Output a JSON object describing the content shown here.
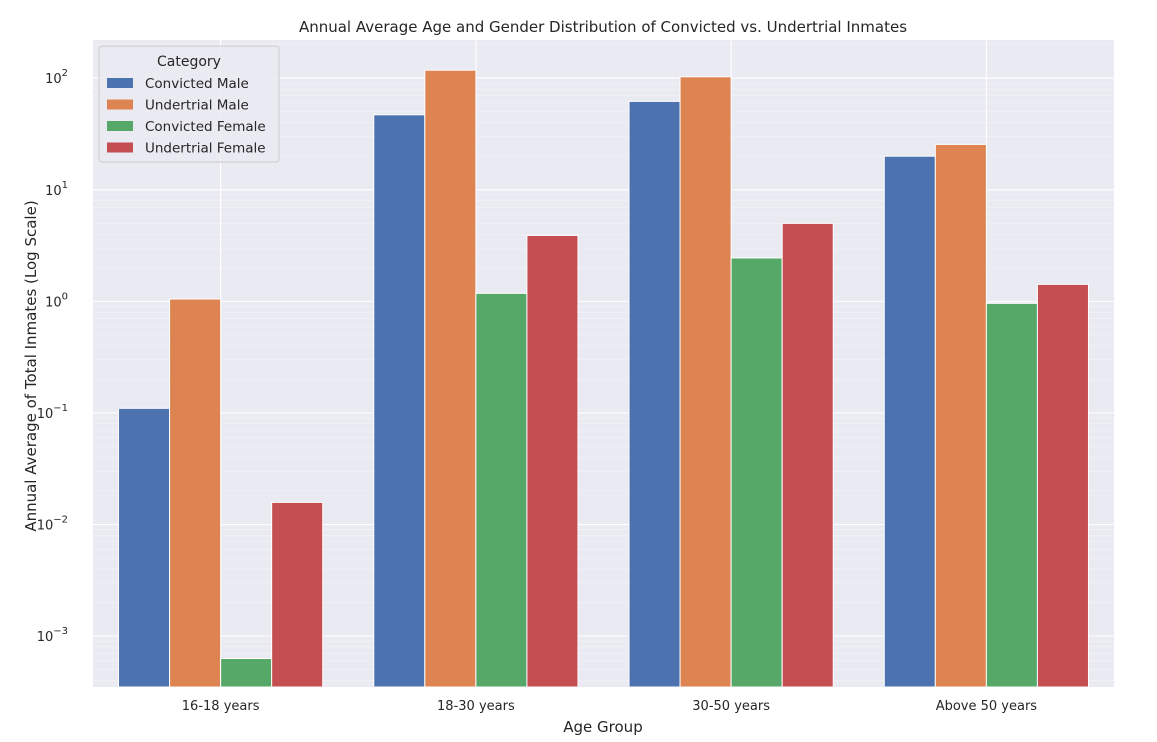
{
  "chart_data": {
    "type": "bar",
    "title": "Annual Average Age and Gender Distribution of Convicted vs. Undertrial Inmates",
    "xlabel": "Age Group",
    "ylabel": "Annual Average of Total Inmates (Log Scale)",
    "yscale": "log",
    "ylim": [
      0.00035,
      220
    ],
    "categories": [
      "16-18 years",
      "18-30 years",
      "30-50 years",
      "Above 50 years"
    ],
    "y_ticks": [
      {
        "value": 0.001,
        "base": "10",
        "exp": "−3"
      },
      {
        "value": 0.01,
        "base": "10",
        "exp": "−2"
      },
      {
        "value": 0.1,
        "base": "10",
        "exp": "−1"
      },
      {
        "value": 1,
        "base": "10",
        "exp": "0"
      },
      {
        "value": 10,
        "base": "10",
        "exp": "1"
      },
      {
        "value": 100,
        "base": "10",
        "exp": "2"
      }
    ],
    "grid": true,
    "legend": {
      "title": "Category",
      "position": "top-left"
    },
    "series": [
      {
        "name": "Convicted Male",
        "color": "#4c72b0",
        "values": [
          0.11,
          47,
          62,
          20
        ]
      },
      {
        "name": "Undertrial Male",
        "color": "#dd8452",
        "values": [
          1.05,
          118,
          103,
          25.5
        ]
      },
      {
        "name": "Convicted Female",
        "color": "#55a868",
        "values": [
          0.00063,
          1.18,
          2.45,
          0.96
        ]
      },
      {
        "name": "Undertrial Female",
        "color": "#c44e52",
        "values": [
          0.0158,
          3.9,
          5.0,
          1.42
        ]
      }
    ],
    "background": "#eaeaf2"
  }
}
